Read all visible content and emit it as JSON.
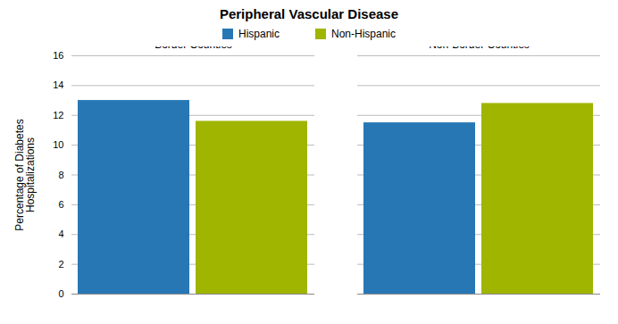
{
  "chart_data": {
    "type": "bar",
    "title": "Peripheral Vascular Disease",
    "ylabel": "Percentage of Diabetes\nHospitalizations",
    "categories": [
      "Border Counties",
      "Non-Border Counties"
    ],
    "series": [
      {
        "name": "Hispanic",
        "color": "#2777B5",
        "values": [
          13.0,
          11.5
        ]
      },
      {
        "name": "Non-Hispanic",
        "color": "#9FB500",
        "values": [
          11.6,
          12.8
        ]
      }
    ],
    "ylim": [
      0,
      16
    ],
    "yticks": [
      0,
      2,
      4,
      6,
      8,
      10,
      12,
      14,
      16
    ],
    "grid": true,
    "legend": "top"
  }
}
